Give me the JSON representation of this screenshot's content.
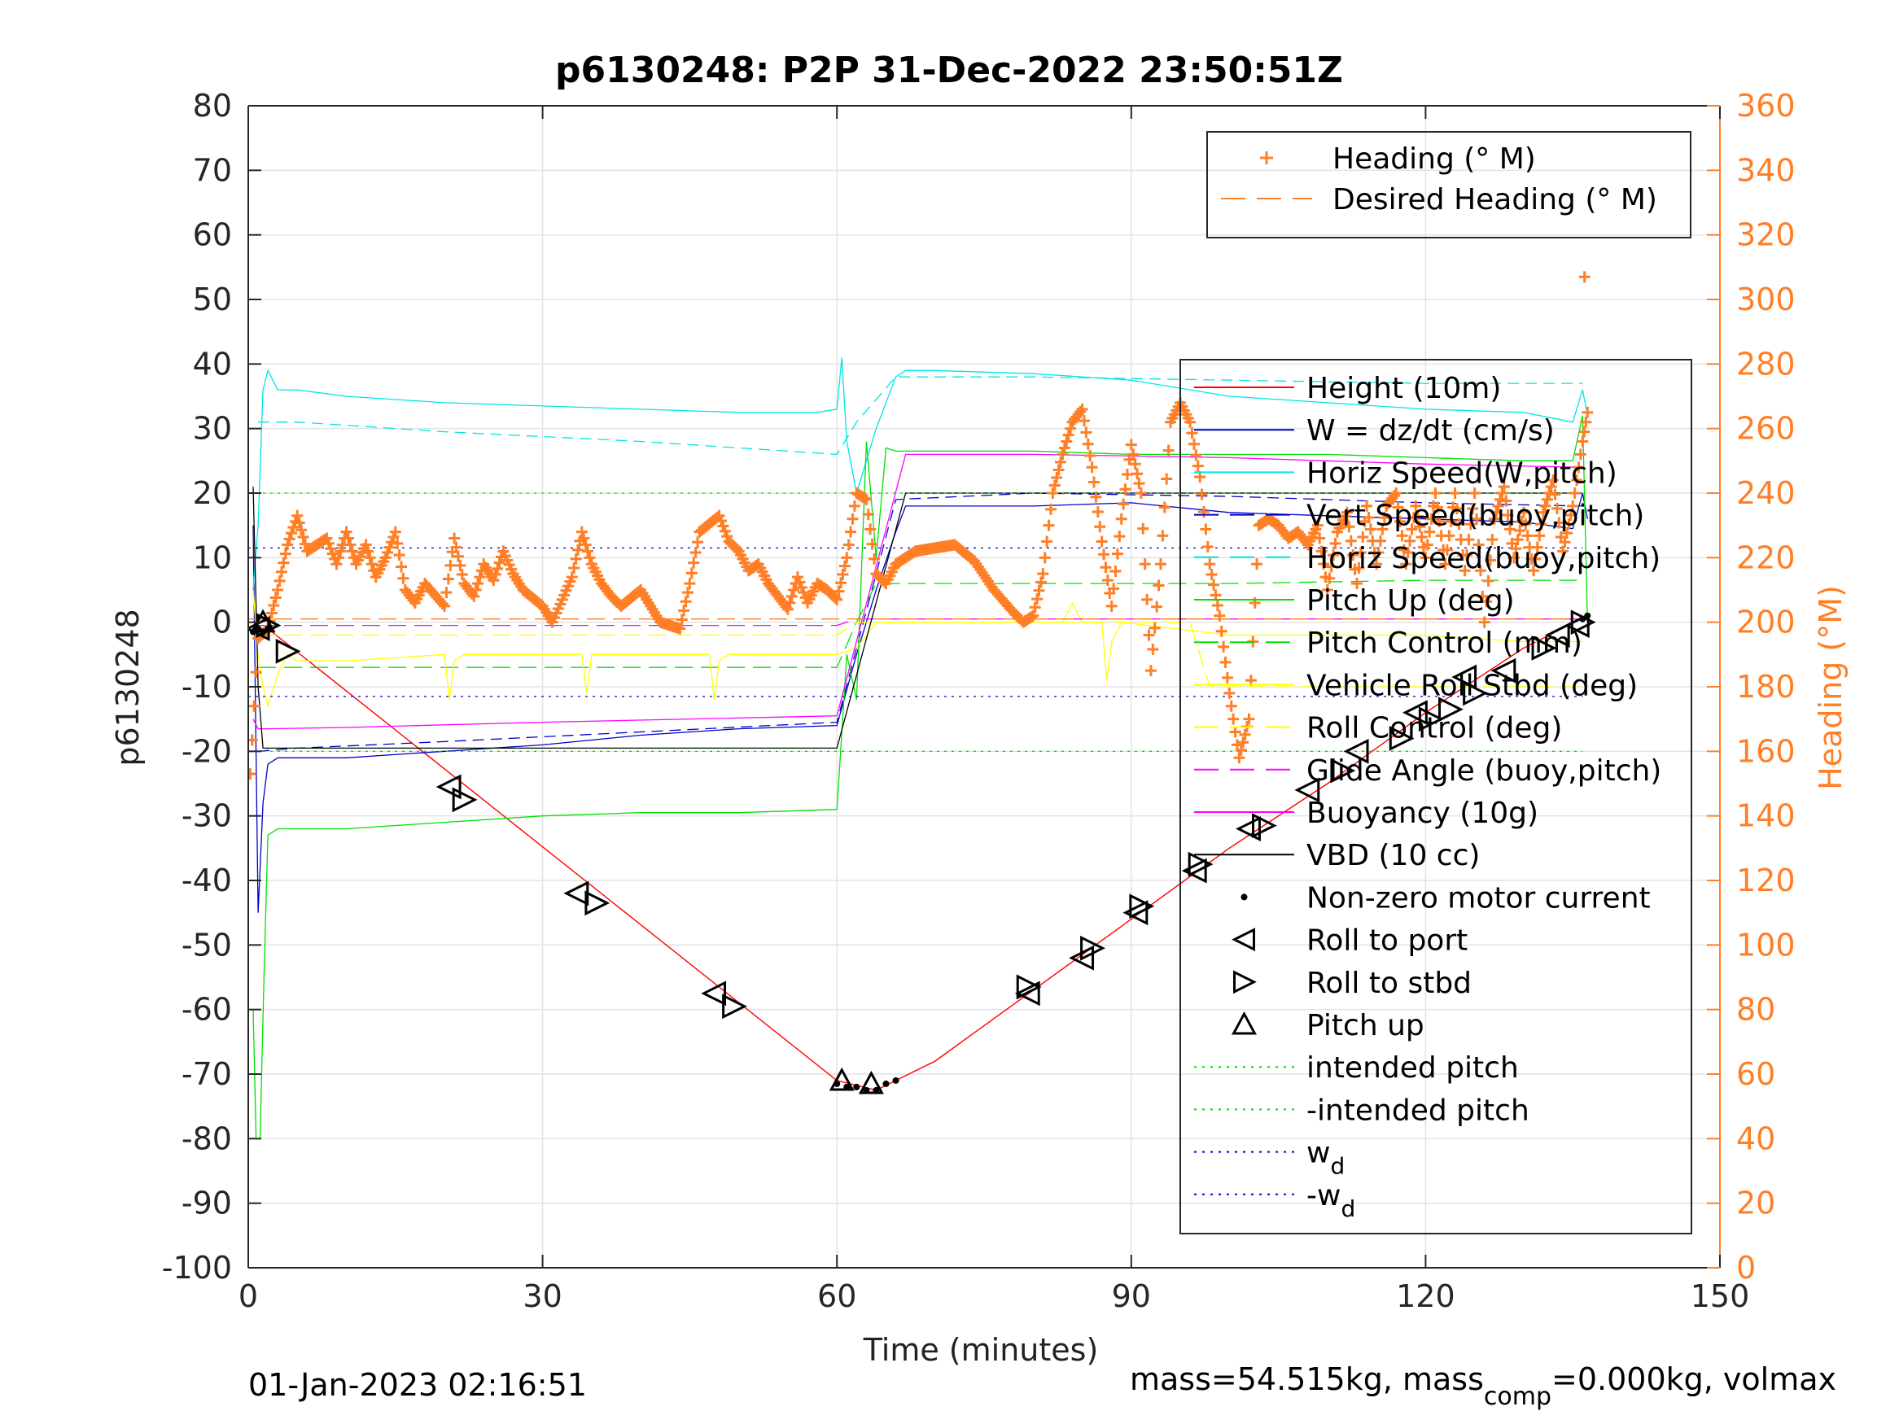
{
  "chart_data": {
    "type": "line",
    "title": "p6130248: P2P 31-Dec-2022 23:50:51Z",
    "xlabel": "Time (minutes)",
    "ylabel": "p6130248",
    "ylabel_right": "Heading (°M)",
    "xlim": [
      0,
      150
    ],
    "ylim": [
      -100,
      80
    ],
    "ylim_right": [
      0,
      360
    ],
    "x_ticks": [
      "0",
      "30",
      "60",
      "90",
      "120",
      "150"
    ],
    "y_ticks": [
      "80",
      "70",
      "60",
      "50",
      "40",
      "30",
      "20",
      "10",
      "0",
      "-10",
      "-20",
      "-30",
      "-40",
      "-50",
      "-60",
      "-70",
      "-80",
      "-90",
      "-100"
    ],
    "y_ticks_right": [
      "360",
      "340",
      "320",
      "300",
      "280",
      "260",
      "240",
      "220",
      "200",
      "180",
      "160",
      "140",
      "120",
      "100",
      "80",
      "60",
      "40",
      "20",
      "0"
    ],
    "grid": true,
    "footer_left": "01-Jan-2023 02:16:51",
    "footer_right": {
      "pre": "mass=54.515kg, mass",
      "sub": "comp",
      "post": "=0.000kg, volmax"
    },
    "legend_heading": [
      {
        "label": "Heading (° M)",
        "color": "#ff7f27",
        "style": "plus"
      },
      {
        "label": "Desired Heading (° M)",
        "color": "#ff7f27",
        "style": "dash"
      }
    ],
    "legend_main": [
      {
        "label": "Height (10m)",
        "color": "#ff0000",
        "style": "solid"
      },
      {
        "label": "W = dz/dt (cm/s)",
        "color": "#0000cc",
        "style": "solid"
      },
      {
        "label": "Horiz Speed(W,pitch)",
        "color": "#00e5e5",
        "style": "solid"
      },
      {
        "label": "Vert Speed(buoy,pitch)",
        "color": "#0000cc",
        "style": "dash"
      },
      {
        "label": "Horiz Speed(buoy,pitch)",
        "color": "#00e5e5",
        "style": "dash"
      },
      {
        "label": "Pitch Up (deg)",
        "color": "#00e000",
        "style": "solid"
      },
      {
        "label": "Pitch Control (mm)",
        "color": "#00e000",
        "style": "dash"
      },
      {
        "label": "Vehicle Roll Stbd (deg)",
        "color": "#ffff00",
        "style": "solid"
      },
      {
        "label": "Roll Control (deg)",
        "color": "#ffff00",
        "style": "dash"
      },
      {
        "label": "Glide Angle (buoy,pitch)",
        "color": "#ff00ff",
        "style": "dash"
      },
      {
        "label": "Buoyancy (10g)",
        "color": "#ff00ff",
        "style": "solid"
      },
      {
        "label": "VBD (10 cc)",
        "color": "#000000",
        "style": "solid"
      },
      {
        "label": "Non-zero motor current",
        "color": "#000000",
        "style": "dot"
      },
      {
        "label": "Roll to port",
        "color": "#000000",
        "style": "tri-left"
      },
      {
        "label": "Roll to stbd",
        "color": "#000000",
        "style": "tri-right"
      },
      {
        "label": "Pitch up",
        "color": "#000000",
        "style": "tri-up"
      },
      {
        "label": "intended pitch",
        "color": "#00e000",
        "style": "dotted"
      },
      {
        "label": "-intended pitch",
        "color": "#00e000",
        "style": "dotted"
      },
      {
        "label": "w",
        "sub": "d",
        "color": "#0000cc",
        "style": "dotted"
      },
      {
        "label": "-w",
        "sub": "d",
        "color": "#0000cc",
        "style": "dotted"
      }
    ],
    "series": [
      {
        "name": "Height (10m)",
        "color": "#ff0000",
        "width": 1.4,
        "x": [
          0.5,
          2,
          60,
          64,
          66,
          70,
          80,
          90,
          100,
          110,
          120,
          130,
          136.5
        ],
        "y": [
          -1,
          -1,
          -71,
          -72.5,
          -71,
          -68,
          -57,
          -46,
          -35,
          -25,
          -14,
          -4,
          1
        ]
      },
      {
        "name": "W = dz/dt (cm/s)",
        "color": "#0000cc",
        "width": 1.3,
        "x": [
          0.5,
          1,
          1.5,
          2,
          3,
          5,
          10,
          20,
          30,
          40,
          50,
          60,
          62,
          64,
          66,
          67,
          70,
          80,
          90,
          100,
          110,
          120,
          130,
          135,
          136,
          136.5
        ],
        "y": [
          15,
          -45,
          -28,
          -22,
          -21,
          -21,
          -21,
          -20,
          -19,
          -17.5,
          -16.5,
          -16,
          -5,
          5,
          14,
          18,
          18,
          18,
          18.5,
          17,
          16.5,
          16,
          15.5,
          14.5,
          20,
          16
        ]
      },
      {
        "name": "Horiz Speed(W,pitch)",
        "color": "#00e5e5",
        "width": 1.3,
        "x": [
          0.5,
          1,
          1.5,
          2,
          3,
          5,
          10,
          20,
          30,
          40,
          50,
          58,
          60,
          60.5,
          61,
          62,
          64,
          66,
          67,
          70,
          80,
          90,
          100,
          110,
          120,
          130,
          135,
          136,
          136.5
        ],
        "y": [
          5,
          15,
          36,
          39,
          36,
          36,
          35,
          34,
          33.5,
          33,
          32.5,
          32.5,
          33,
          41,
          28,
          20,
          30,
          38,
          39,
          39,
          38.5,
          37.5,
          35,
          34,
          33,
          32.5,
          31,
          36,
          32
        ]
      },
      {
        "name": "Vert Speed(buoy,pitch)",
        "color": "#0000cc",
        "dash": "14,8",
        "width": 1.3,
        "x": [
          1,
          5,
          20,
          40,
          60,
          66,
          80,
          100,
          120,
          136
        ],
        "y": [
          -20,
          -19.5,
          -18.5,
          -17,
          -15.5,
          19,
          20,
          19.5,
          18.5,
          18
        ]
      },
      {
        "name": "Horiz Speed(buoy,pitch)",
        "color": "#00e5e5",
        "dash": "14,8",
        "width": 1.3,
        "x": [
          1,
          5,
          20,
          40,
          60,
          62,
          66,
          80,
          100,
          120,
          136
        ],
        "y": [
          31,
          31,
          29.5,
          28,
          26,
          31,
          38,
          38,
          37.5,
          37,
          37
        ]
      },
      {
        "name": "Pitch Up (deg)",
        "color": "#00e000",
        "width": 1.3,
        "x": [
          0.5,
          0.8,
          1.2,
          1.6,
          2,
          3,
          5,
          10,
          20,
          30,
          40,
          50,
          60,
          61,
          62,
          63,
          64,
          65,
          66,
          70,
          80,
          90,
          100,
          110,
          120,
          130,
          135,
          136,
          136.5
        ],
        "y": [
          -60,
          -80,
          -80,
          -55,
          -33,
          -32,
          -32,
          -32,
          -31,
          -30,
          -29.5,
          -29.5,
          -29,
          -5,
          -12,
          28,
          10,
          27,
          26.5,
          26.5,
          26.5,
          26,
          26,
          26,
          25.5,
          25,
          25,
          32,
          0
        ]
      },
      {
        "name": "Pitch Control (mm)",
        "color": "#00e000",
        "dash": "22,10",
        "width": 1.3,
        "x": [
          1,
          20,
          40,
          60,
          62,
          64,
          80,
          100,
          120,
          136
        ],
        "y": [
          -7,
          -7,
          -7,
          -7,
          0,
          6,
          6,
          6,
          6.5,
          6.5
        ]
      },
      {
        "name": "Vehicle Roll Stbd (deg)",
        "color": "#ffff00",
        "width": 1.3,
        "x": [
          0.5,
          1,
          1.5,
          2,
          3,
          4,
          5,
          10,
          20,
          20.5,
          21,
          22,
          30,
          34,
          34.5,
          35,
          36,
          47,
          47.5,
          48,
          49,
          58,
          60,
          62,
          64,
          66,
          70,
          80,
          83,
          84,
          85,
          87,
          87.5,
          88,
          89,
          100,
          110,
          120,
          130,
          136
        ],
        "y": [
          5,
          -5,
          -10,
          -13,
          -8,
          -5,
          -6,
          -6,
          -5,
          -12,
          -6,
          -5,
          -5,
          -5,
          -11,
          -5,
          -5,
          -5,
          -12,
          -6,
          -5,
          -5,
          -5,
          -4,
          0,
          0,
          0,
          0,
          0,
          3,
          0,
          0,
          -9,
          -3,
          0,
          -2,
          -2,
          -2,
          -3,
          -3
        ]
      },
      {
        "name": "Roll Control (deg)",
        "color": "#ffff00",
        "dash": "22,10",
        "width": 1.3,
        "x": [
          1,
          60,
          62,
          96,
          98,
          136
        ],
        "y": [
          -2,
          -2,
          0,
          0,
          -10,
          -10
        ]
      },
      {
        "name": "Glide Angle (buoy,pitch)",
        "color": "#ff00ff",
        "dash": "22,10",
        "width": 1.3,
        "x": [
          1,
          60,
          62,
          136
        ],
        "y": [
          -0.5,
          -0.5,
          0.5,
          0.5
        ]
      },
      {
        "name": "Buoyancy (10g)",
        "color": "#ff00ff",
        "width": 1.3,
        "x": [
          0.5,
          1,
          2,
          10,
          30,
          60,
          67,
          80,
          100,
          120,
          136
        ],
        "y": [
          -15,
          -16.5,
          -16.5,
          -16.3,
          -15.5,
          -14.5,
          26,
          26,
          25.5,
          24.5,
          24
        ]
      },
      {
        "name": "VBD (10 cc)",
        "color": "#000000",
        "width": 1.3,
        "x": [
          0.5,
          1,
          1.5,
          60,
          67,
          100,
          136
        ],
        "y": [
          21,
          -10,
          -19.5,
          -19.5,
          20,
          20,
          20
        ]
      },
      {
        "name": "intended pitch",
        "color": "#00e000",
        "dash": "3,6",
        "width": 1.3,
        "x": [
          0,
          136
        ],
        "y": [
          20,
          20
        ]
      },
      {
        "name": "-intended pitch",
        "color": "#00e000",
        "dash": "3,6",
        "width": 1.3,
        "x": [
          0,
          136
        ],
        "y": [
          -20,
          -20
        ]
      },
      {
        "name": "wd",
        "color": "#0000cc",
        "dash": "3,6",
        "width": 1.3,
        "x": [
          0,
          136
        ],
        "y": [
          11.5,
          11.5
        ]
      },
      {
        "name": "-wd",
        "color": "#0000cc",
        "dash": "3,6",
        "width": 1.3,
        "x": [
          0,
          136
        ],
        "y": [
          -11.5,
          -11.5
        ]
      }
    ],
    "desired_heading": {
      "x": [
        0,
        136
      ],
      "y": [
        201,
        201
      ]
    },
    "heading_points": {
      "x": [
        0.2,
        1,
        2,
        3,
        4,
        5,
        6,
        8,
        9,
        10,
        11,
        12,
        13,
        14,
        15,
        16,
        17,
        18,
        20,
        21,
        22,
        23,
        24,
        25,
        26,
        27,
        28,
        30,
        31,
        32,
        33,
        34,
        35,
        36,
        37,
        38,
        40,
        41,
        42,
        44,
        45,
        46,
        48,
        49,
        50,
        51,
        52,
        53,
        54,
        55,
        56,
        57,
        58,
        59,
        60,
        61,
        62,
        63,
        64,
        65,
        66,
        67,
        68,
        70,
        72,
        74,
        76,
        78,
        79,
        80,
        81,
        82,
        83,
        84,
        85,
        86,
        87,
        88,
        89,
        90,
        91,
        92,
        93,
        94,
        95,
        96,
        97,
        98,
        99,
        100,
        101,
        102,
        103,
        104,
        105,
        106,
        107,
        108,
        109,
        110,
        111,
        112,
        113,
        114,
        115,
        116,
        117,
        118,
        119,
        120,
        121,
        122,
        123,
        124,
        125,
        126,
        127,
        128,
        129,
        130,
        131,
        132,
        133,
        134,
        135,
        136,
        136.5
      ],
      "y": [
        153,
        195,
        198,
        210,
        224,
        233,
        222,
        226,
        218,
        228,
        218,
        224,
        214,
        220,
        228,
        210,
        206,
        212,
        205,
        226,
        212,
        208,
        218,
        213,
        222,
        215,
        210,
        205,
        200,
        207,
        214,
        228,
        218,
        212,
        208,
        205,
        210,
        205,
        200,
        198,
        212,
        228,
        233,
        225,
        222,
        216,
        218,
        212,
        208,
        204,
        214,
        206,
        212,
        210,
        207,
        220,
        240,
        238,
        215,
        212,
        218,
        220,
        222,
        223,
        224,
        219,
        210,
        203,
        200,
        202,
        215,
        240,
        252,
        262,
        266,
        248,
        225,
        205,
        232,
        255,
        240,
        185,
        218,
        262,
        268,
        262,
        245,
        218,
        202,
        178,
        158,
        170,
        230,
        232,
        230,
        226,
        228,
        224,
        230,
        210,
        228,
        234,
        212,
        236,
        218,
        236,
        240,
        218,
        236,
        220,
        240,
        218,
        240,
        216,
        240,
        200,
        232,
        242,
        220,
        234,
        216,
        234,
        244,
        222,
        236,
        256,
        265
      ]
    },
    "heading_outlier": {
      "x": 136.2,
      "y": 307
    },
    "motor_dots": {
      "x": [
        0.5,
        1,
        1.5,
        2,
        60,
        61,
        62,
        63,
        64,
        65,
        66,
        136,
        136.5
      ],
      "y": [
        -1.5,
        -1,
        -1.5,
        -1,
        -71.5,
        -72,
        -72,
        -72.5,
        -72.5,
        -71.5,
        -71,
        0.5,
        1
      ]
    },
    "markers_roll_port": {
      "x": [
        1,
        20.5,
        33.5,
        47.5,
        79.5,
        85,
        90.5,
        96.5,
        102,
        108,
        113,
        119,
        124,
        128,
        133.5,
        135.5
      ],
      "y": [
        -1,
        -25.5,
        -42,
        -57.5,
        -57.5,
        -52,
        -45,
        -38.5,
        -32,
        -26,
        -20,
        -14,
        -8.5,
        -7.5,
        -2,
        -0.5
      ]
    },
    "markers_roll_stbd": {
      "x": [
        2,
        4,
        22,
        35.5,
        49.5,
        79.5,
        86,
        91,
        97,
        103.5,
        111.5,
        117.5,
        120.5,
        122.5,
        125,
        132,
        136
      ],
      "y": [
        -0.5,
        -4.5,
        -27.5,
        -43.5,
        -59.5,
        -56.5,
        -50.5,
        -44,
        -37.5,
        -31.5,
        -23,
        -18,
        -15,
        -13.5,
        -11,
        -4,
        0
      ]
    },
    "markers_pitch_up": {
      "x": [
        1.5,
        60.5,
        63.5
      ],
      "y": [
        0,
        -71,
        -71.5
      ]
    }
  }
}
